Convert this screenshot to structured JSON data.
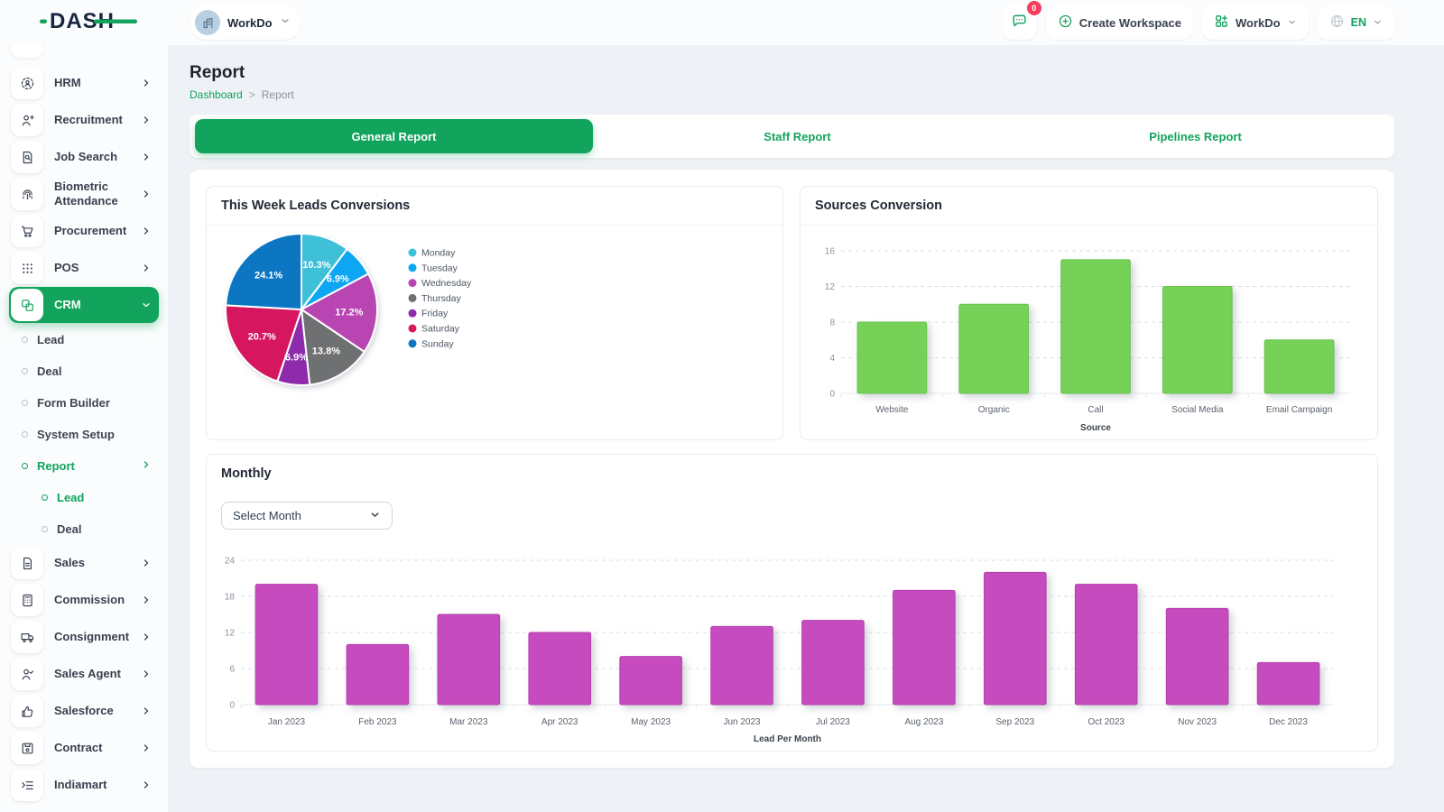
{
  "theme": {
    "accent": "#12a35c"
  },
  "topbar": {
    "logo_text": "DASH",
    "workspace_switcher": {
      "label": "WorkDo"
    },
    "chat_badge": "0",
    "create_workspace_label": "Create Workspace",
    "workspace_menu_label": "WorkDo",
    "language_label": "EN"
  },
  "sidebar": {
    "items": [
      {
        "type": "item",
        "label": "HRM",
        "icon": "hrm-icon"
      },
      {
        "type": "item",
        "label": "Recruitment",
        "icon": "recruitment-icon"
      },
      {
        "type": "item",
        "label": "Job Search",
        "icon": "job-search-icon"
      },
      {
        "type": "item",
        "label": "Biometric Attendance",
        "icon": "biometric-icon"
      },
      {
        "type": "item",
        "label": "Procurement",
        "icon": "procurement-icon"
      },
      {
        "type": "item",
        "label": "POS",
        "icon": "pos-icon"
      },
      {
        "type": "item",
        "label": "CRM",
        "icon": "crm-icon",
        "active": true,
        "expanded": true
      },
      {
        "type": "sub",
        "label": "Lead"
      },
      {
        "type": "sub",
        "label": "Deal"
      },
      {
        "type": "sub",
        "label": "Form Builder"
      },
      {
        "type": "sub",
        "label": "System Setup"
      },
      {
        "type": "sub",
        "label": "Report",
        "active": true,
        "has_children": true
      },
      {
        "type": "sub2",
        "label": "Lead",
        "active": true
      },
      {
        "type": "sub2",
        "label": "Deal"
      },
      {
        "type": "item",
        "label": "Sales",
        "icon": "sales-icon"
      },
      {
        "type": "item",
        "label": "Commission",
        "icon": "commission-icon"
      },
      {
        "type": "item",
        "label": "Consignment",
        "icon": "consignment-icon"
      },
      {
        "type": "item",
        "label": "Sales Agent",
        "icon": "sales-agent-icon"
      },
      {
        "type": "item",
        "label": "Salesforce",
        "icon": "salesforce-icon"
      },
      {
        "type": "item",
        "label": "Contract",
        "icon": "contract-icon"
      },
      {
        "type": "item",
        "label": "Indiamart",
        "icon": "indiamart-icon"
      }
    ]
  },
  "page": {
    "title": "Report",
    "breadcrumb": {
      "home": "Dashboard",
      "separator": ">",
      "current": "Report"
    }
  },
  "tabs": [
    {
      "label": "General Report",
      "active": true
    },
    {
      "label": "Staff Report",
      "active": false
    },
    {
      "label": "Pipelines Report",
      "active": false
    }
  ],
  "cards": {
    "leads_title": "This Week Leads Conversions",
    "sources_title": "Sources Conversion",
    "monthly_title": "Monthly",
    "month_select_placeholder": "Select Month"
  },
  "chart_data": [
    {
      "id": "leads_pie",
      "type": "pie",
      "title": "This Week Leads Conversions",
      "labels": [
        "Monday",
        "Tuesday",
        "Wednesday",
        "Thursday",
        "Friday",
        "Saturday",
        "Sunday"
      ],
      "values": [
        10.3,
        6.9,
        17.2,
        13.8,
        6.9,
        20.7,
        24.1
      ],
      "unit": "%",
      "colors": [
        "#3EC0D8",
        "#0FA6F2",
        "#B845B2",
        "#6E6F72",
        "#8E2BAC",
        "#D6185E",
        "#0C76C3"
      ],
      "legend_position": "right"
    },
    {
      "id": "sources_bar",
      "type": "bar",
      "title": "Sources Conversion",
      "categories": [
        "Website",
        "Organic",
        "Call",
        "Social Media",
        "Email Campaign"
      ],
      "values": [
        8,
        10,
        15,
        12,
        6
      ],
      "xlabel": "Source",
      "ylabel": "",
      "ylim": [
        0,
        16
      ],
      "yticks": [
        0,
        4,
        8,
        12,
        16
      ],
      "grid": "dashed",
      "bar_color": "#74D158",
      "bar_stroke": "#67C24B"
    },
    {
      "id": "monthly_bar",
      "type": "bar",
      "title": "Monthly",
      "categories": [
        "Jan 2023",
        "Feb 2023",
        "Mar 2023",
        "Apr 2023",
        "May 2023",
        "Jun 2023",
        "Jul 2023",
        "Aug 2023",
        "Sep 2023",
        "Oct 2023",
        "Nov 2023",
        "Dec 2023"
      ],
      "values": [
        20,
        10,
        15,
        12,
        8,
        13,
        14,
        19,
        22,
        20,
        16,
        7
      ],
      "xlabel": "Lead Per Month",
      "ylabel": "",
      "ylim": [
        0,
        24
      ],
      "yticks": [
        0,
        6,
        12,
        18,
        24
      ],
      "grid": "dashed",
      "bar_color": "#C64BBE",
      "bar_stroke": "#B43FAD"
    }
  ]
}
